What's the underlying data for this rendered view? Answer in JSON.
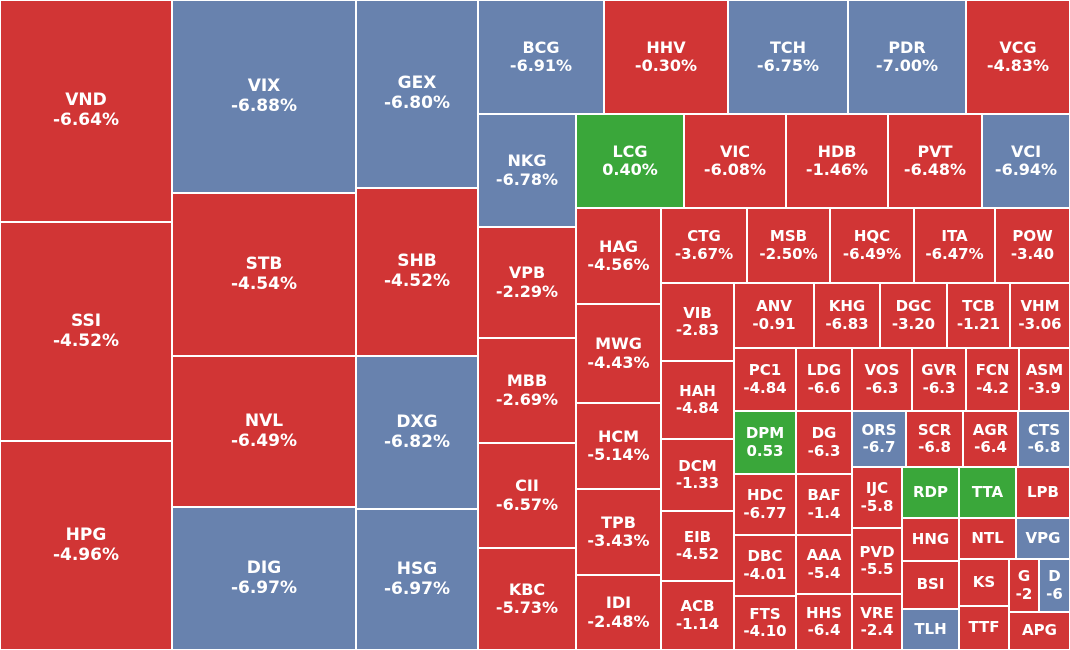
{
  "colors": {
    "down": "#d13535",
    "floor": "#6882ae",
    "up": "#3aa73a"
  },
  "tiles": [
    {
      "symbol": "VND",
      "change": "-6.64%",
      "status": "down"
    },
    {
      "symbol": "SSI",
      "change": "-4.52%",
      "status": "down"
    },
    {
      "symbol": "HPG",
      "change": "-4.96%",
      "status": "down"
    },
    {
      "symbol": "VIX",
      "change": "-6.88%",
      "status": "floor"
    },
    {
      "symbol": "STB",
      "change": "-4.54%",
      "status": "down"
    },
    {
      "symbol": "NVL",
      "change": "-6.49%",
      "status": "down"
    },
    {
      "symbol": "DIG",
      "change": "-6.97%",
      "status": "floor"
    },
    {
      "symbol": "GEX",
      "change": "-6.80%",
      "status": "floor"
    },
    {
      "symbol": "SHB",
      "change": "-4.52%",
      "status": "down"
    },
    {
      "symbol": "DXG",
      "change": "-6.82%",
      "status": "floor"
    },
    {
      "symbol": "HSG",
      "change": "-6.97%",
      "status": "floor"
    },
    {
      "symbol": "BCG",
      "change": "-6.91%",
      "status": "floor"
    },
    {
      "symbol": "HHV",
      "change": "-0.30%",
      "status": "down"
    },
    {
      "symbol": "TCH",
      "change": "-6.75%",
      "status": "floor"
    },
    {
      "symbol": "PDR",
      "change": "-7.00%",
      "status": "floor"
    },
    {
      "symbol": "VCG",
      "change": "-4.83%",
      "status": "down"
    },
    {
      "symbol": "NKG",
      "change": "-6.78%",
      "status": "floor"
    },
    {
      "symbol": "VPB",
      "change": "-2.29%",
      "status": "down"
    },
    {
      "symbol": "MBB",
      "change": "-2.69%",
      "status": "down"
    },
    {
      "symbol": "CII",
      "change": "-6.57%",
      "status": "down"
    },
    {
      "symbol": "KBC",
      "change": "-5.73%",
      "status": "down"
    },
    {
      "symbol": "LCG",
      "change": "0.40%",
      "status": "up"
    },
    {
      "symbol": "VIC",
      "change": "-6.08%",
      "status": "down"
    },
    {
      "symbol": "HDB",
      "change": "-1.46%",
      "status": "down"
    },
    {
      "symbol": "PVT",
      "change": "-6.48%",
      "status": "down"
    },
    {
      "symbol": "VCI",
      "change": "-6.94%",
      "status": "floor"
    },
    {
      "symbol": "HAG",
      "change": "-4.56%",
      "status": "down"
    },
    {
      "symbol": "MWG",
      "change": "-4.43%",
      "status": "down"
    },
    {
      "symbol": "HCM",
      "change": "-5.14%",
      "status": "down"
    },
    {
      "symbol": "TPB",
      "change": "-3.43%",
      "status": "down"
    },
    {
      "symbol": "IDI",
      "change": "-2.48%",
      "status": "down"
    },
    {
      "symbol": "CTG",
      "change": "-3.67%",
      "status": "down"
    },
    {
      "symbol": "MSB",
      "change": "-2.50%",
      "status": "down"
    },
    {
      "symbol": "HQC",
      "change": "-6.49%",
      "status": "down"
    },
    {
      "symbol": "ITA",
      "change": "-6.47%",
      "status": "down"
    },
    {
      "symbol": "POW",
      "change": "-3.40",
      "status": "down"
    },
    {
      "symbol": "VIB",
      "change": "-2.83",
      "status": "down"
    },
    {
      "symbol": "HAH",
      "change": "-4.84",
      "status": "down"
    },
    {
      "symbol": "DCM",
      "change": "-1.33",
      "status": "down"
    },
    {
      "symbol": "EIB",
      "change": "-4.52",
      "status": "down"
    },
    {
      "symbol": "ACB",
      "change": "-1.14",
      "status": "down"
    },
    {
      "symbol": "ANV",
      "change": "-0.91",
      "status": "down"
    },
    {
      "symbol": "KHG",
      "change": "-6.83",
      "status": "down"
    },
    {
      "symbol": "DGC",
      "change": "-3.20",
      "status": "down"
    },
    {
      "symbol": "TCB",
      "change": "-1.21",
      "status": "down"
    },
    {
      "symbol": "VHM",
      "change": "-3.06",
      "status": "down"
    },
    {
      "symbol": "PC1",
      "change": "-4.84",
      "status": "down"
    },
    {
      "symbol": "LDG",
      "change": "-6.6",
      "status": "down"
    },
    {
      "symbol": "VOS",
      "change": "-6.3",
      "status": "down"
    },
    {
      "symbol": "GVR",
      "change": "-6.3",
      "status": "down"
    },
    {
      "symbol": "FCN",
      "change": "-4.2",
      "status": "down"
    },
    {
      "symbol": "ASM",
      "change": "-3.9",
      "status": "down"
    },
    {
      "symbol": "DPM",
      "change": "0.53",
      "status": "up"
    },
    {
      "symbol": "DG",
      "change": "-6.3",
      "status": "down"
    },
    {
      "symbol": "ORS",
      "change": "-6.7",
      "status": "floor"
    },
    {
      "symbol": "SCR",
      "change": "-6.8",
      "status": "down"
    },
    {
      "symbol": "AGR",
      "change": "-6.4",
      "status": "down"
    },
    {
      "symbol": "CTS",
      "change": "-6.8",
      "status": "floor"
    },
    {
      "symbol": "HDC",
      "change": "-6.77",
      "status": "down"
    },
    {
      "symbol": "BAF",
      "change": "-1.4",
      "status": "down"
    },
    {
      "symbol": "IJC",
      "change": "-5.8",
      "status": "down"
    },
    {
      "symbol": "RDP",
      "change": "",
      "status": "up"
    },
    {
      "symbol": "TTA",
      "change": "",
      "status": "up"
    },
    {
      "symbol": "LPB",
      "change": "",
      "status": "down"
    },
    {
      "symbol": "DBC",
      "change": "-4.01",
      "status": "down"
    },
    {
      "symbol": "AAA",
      "change": "-5.4",
      "status": "down"
    },
    {
      "symbol": "PVD",
      "change": "-5.5",
      "status": "down"
    },
    {
      "symbol": "HNG",
      "change": "",
      "status": "down"
    },
    {
      "symbol": "NTL",
      "change": "",
      "status": "down"
    },
    {
      "symbol": "VPG",
      "change": "",
      "status": "floor"
    },
    {
      "symbol": "FTS",
      "change": "-4.10",
      "status": "down"
    },
    {
      "symbol": "HHS",
      "change": "-6.4",
      "status": "down"
    },
    {
      "symbol": "VRE",
      "change": "-2.4",
      "status": "down"
    },
    {
      "symbol": "BSI",
      "change": "",
      "status": "down"
    },
    {
      "symbol": "KS",
      "change": "",
      "status": "down"
    },
    {
      "symbol": "G",
      "change": "-2",
      "status": "down"
    },
    {
      "symbol": "D",
      "change": "-6",
      "status": "floor"
    },
    {
      "symbol": "TLH",
      "change": "",
      "status": "floor"
    },
    {
      "symbol": "TTF",
      "change": "",
      "status": "down"
    },
    {
      "symbol": "APG",
      "change": "",
      "status": "down"
    }
  ]
}
